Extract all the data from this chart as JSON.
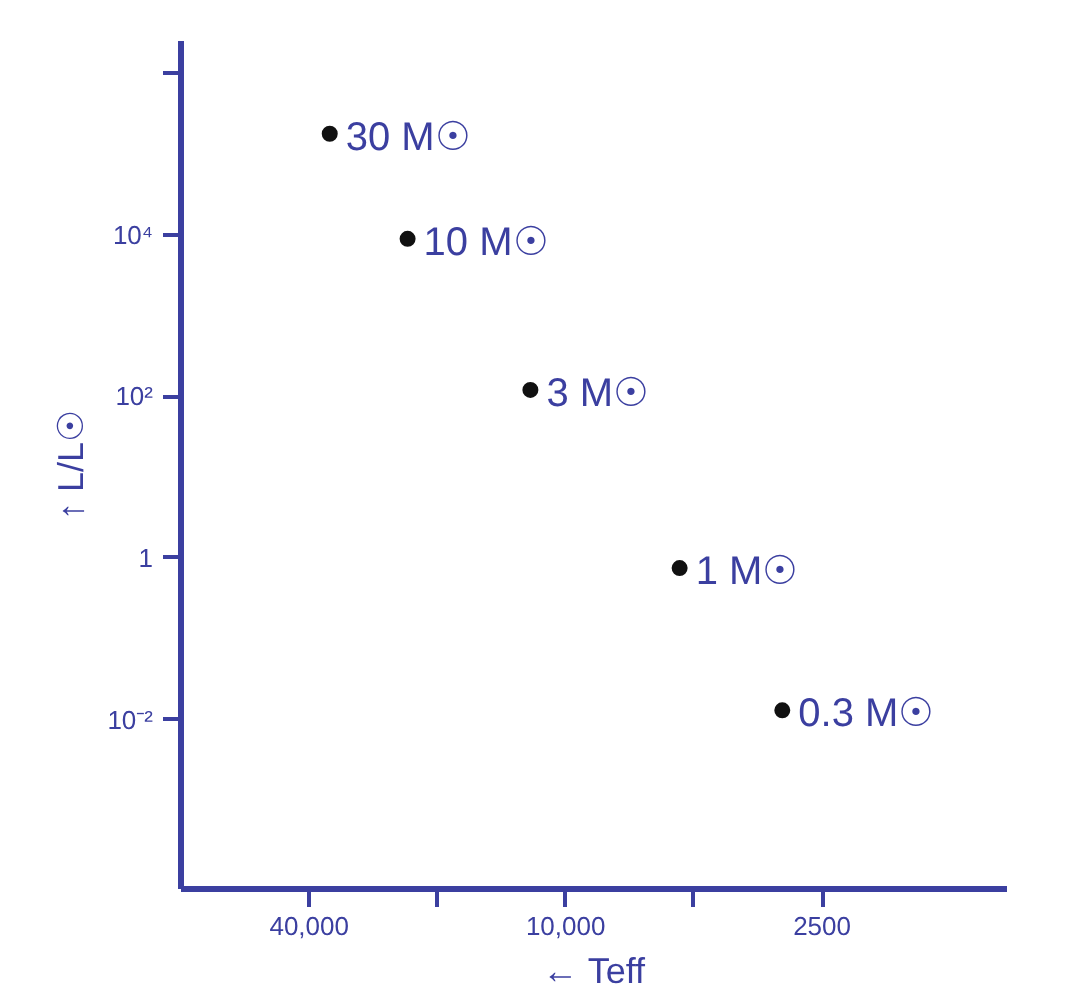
{
  "chart_data": {
    "type": "scatter",
    "xlabel": "← Teff",
    "ylabel": "↑ L/L☉",
    "log": "xy",
    "marker": "circle",
    "grid": false,
    "x": [
      35800,
      23500,
      12100,
      5400,
      3100
    ],
    "series": [
      {
        "color": "#111111",
        "values": [
          178000,
          8900,
          120,
          0.75,
          0.013
        ]
      }
    ],
    "xlim": [
      80000,
      920
    ],
    "ylim": [
      8e-05,
      2500000
    ],
    "xticks": [
      {
        "value": 40000,
        "label": "40,000"
      },
      {
        "value": 20000,
        "label": null
      },
      {
        "value": 10000,
        "label": "10,000"
      },
      {
        "value": 5000,
        "label": null
      },
      {
        "value": 2500,
        "label": "2500"
      }
    ],
    "yticks": [
      {
        "value": 0.01,
        "label": "10⁻²"
      },
      {
        "value": 1,
        "label": "1"
      },
      {
        "value": 100,
        "label": "10²"
      },
      {
        "value": 10000,
        "label": "10⁴"
      },
      {
        "value": 1000000,
        "label": null
      }
    ],
    "annotations": [
      {
        "text": "30 M☉",
        "x": 35800,
        "y": 178000
      },
      {
        "text": "10 M☉",
        "x": 23500,
        "y": 8900
      },
      {
        "text": "3 M☉",
        "x": 12100,
        "y": 120
      },
      {
        "text": "1 M☉",
        "x": 5400,
        "y": 0.75
      },
      {
        "text": "0.3 M☉",
        "x": 3100,
        "y": 0.013
      }
    ]
  }
}
